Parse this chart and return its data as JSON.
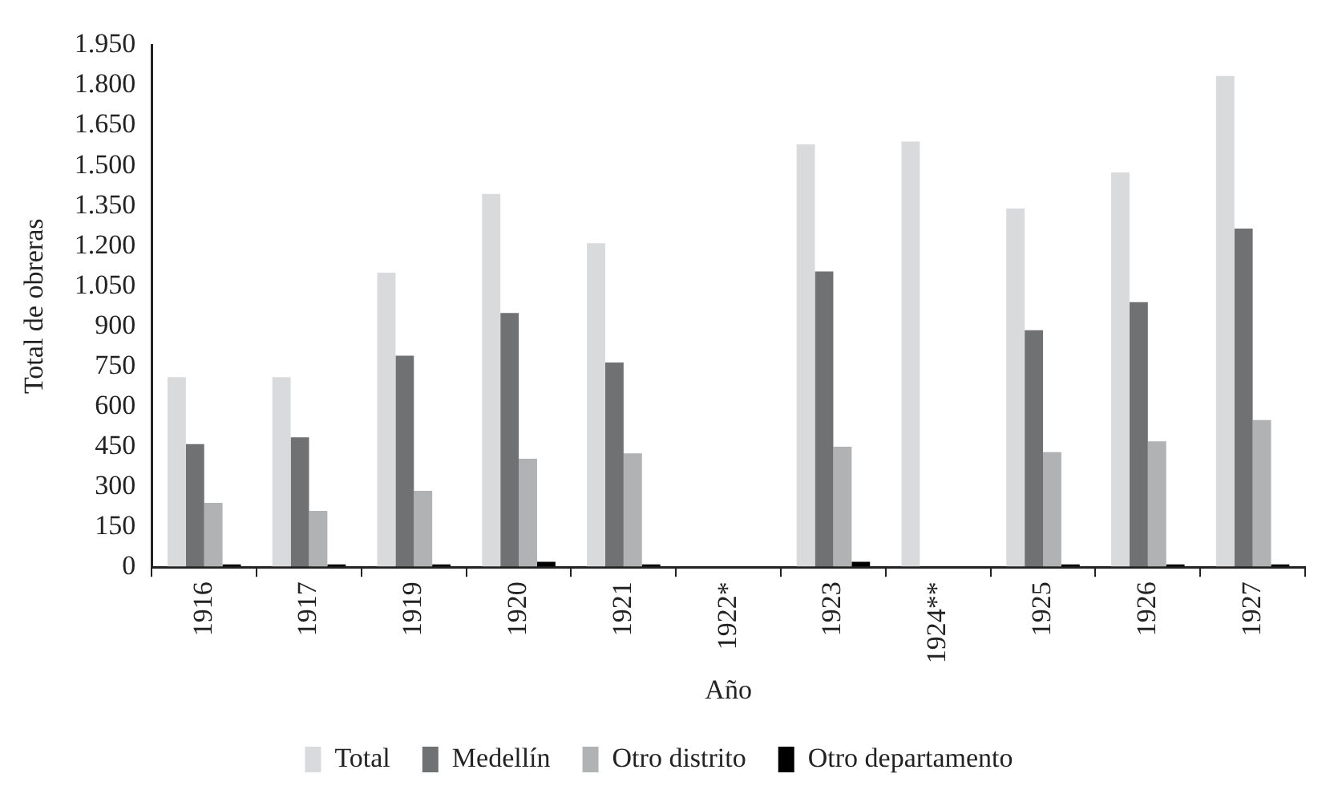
{
  "chart_data": {
    "type": "bar",
    "xlabel": "Año",
    "ylabel": "Total de obreras",
    "categories": [
      "1916",
      "1917",
      "1919",
      "1920",
      "1921",
      "1922*",
      "1923",
      "1924**",
      "1925",
      "1926",
      "1927"
    ],
    "series": [
      {
        "name": "Total",
        "color": "#d9dadc",
        "values": [
          710,
          710,
          1100,
          1395,
          1210,
          null,
          1580,
          1590,
          1340,
          1475,
          1835
        ]
      },
      {
        "name": "Medellín",
        "color": "#707173",
        "values": [
          460,
          485,
          790,
          950,
          765,
          null,
          1105,
          null,
          885,
          990,
          1265
        ]
      },
      {
        "name": "Otro distrito",
        "color": "#b1b2b4",
        "values": [
          240,
          210,
          285,
          405,
          425,
          null,
          450,
          null,
          430,
          470,
          550
        ]
      },
      {
        "name": "Otro departamento",
        "color": "#000000",
        "values": [
          10,
          10,
          10,
          20,
          10,
          null,
          20,
          null,
          10,
          10,
          10
        ]
      }
    ],
    "ylim": [
      0,
      1950
    ],
    "yticks": [
      0,
      150,
      300,
      450,
      600,
      750,
      900,
      {
        "value": 1050,
        "label": "1.050"
      },
      {
        "value": 1200,
        "label": "1.200"
      },
      {
        "value": 1350,
        "label": "1.350"
      },
      {
        "value": 1500,
        "label": "1.500"
      },
      {
        "value": 1650,
        "label": "1.650"
      },
      {
        "value": 1800,
        "label": "1.800"
      },
      {
        "value": 1950,
        "label": "1.950"
      }
    ],
    "grid": false,
    "legend": "bottom"
  }
}
